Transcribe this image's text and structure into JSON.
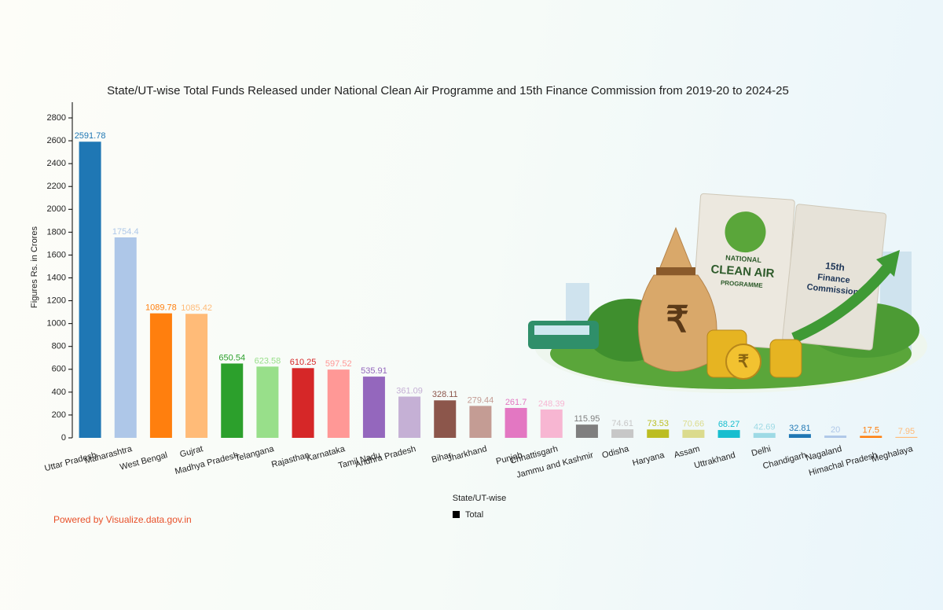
{
  "chart_data": {
    "type": "bar",
    "title": "State/UT-wise Total Funds Released under National Clean Air Programme and 15th Finance Commission from 2019-20 to 2024-25",
    "x_label": "State/UT-wise",
    "y_label": "Figures Rs. in Crores",
    "categories": [
      "Uttar Pradesh",
      "Maharashtra",
      "West Bengal",
      "Gujrat",
      "Madhya Pradesh",
      "Telangana",
      "Rajasthan",
      "Karnataka",
      "Tamil Nadu",
      "Andhra Pradesh",
      "Bihar",
      "Jharkhand",
      "Punjab",
      "Chhattisgarh",
      "Jammu and Kashmir",
      "Odisha",
      "Haryana",
      "Assam",
      "Uttrakhand",
      "Delhi",
      "Chandigarh",
      "Nagaland",
      "Himachal Pradesh",
      "Meghalaya"
    ],
    "series": [
      {
        "name": "Total",
        "color": "#000000",
        "values": [
          2591.78,
          1754.4,
          1089.78,
          1085.42,
          650.54,
          623.58,
          610.25,
          597.52,
          535.91,
          361.09,
          328.11,
          279.44,
          261.7,
          248.39,
          115.95,
          74.61,
          73.53,
          70.66,
          68.27,
          42.69,
          32.81,
          20,
          17.5,
          7.95
        ]
      }
    ],
    "bar_colors": [
      "#1f77b4",
      "#aec7e8",
      "#ff7f0e",
      "#ffbb78",
      "#2ca02c",
      "#98df8a",
      "#d62728",
      "#ff9896",
      "#9467bd",
      "#c5b0d5",
      "#8c564b",
      "#c49c94",
      "#e377c2",
      "#f7b6d2",
      "#7f7f7f",
      "#c7c7c7",
      "#bcbd22",
      "#dbdb8d",
      "#17becf",
      "#9edae5",
      "#1f77b4",
      "#aec7e8",
      "#ff7f0e",
      "#ffbb78"
    ],
    "ylim": [
      0,
      2800
    ],
    "yticks": [
      0,
      200,
      400,
      600,
      800,
      1000,
      1200,
      1400,
      1600,
      1800,
      2000,
      2200,
      2400,
      2600,
      2800
    ],
    "grid": false,
    "credit": "Powered by Visualize.data.gov.in"
  },
  "illustration": {
    "book1_lines": [
      "NATIONAL",
      "CLEAN AIR",
      "PROGRAMME"
    ],
    "book2_lines": [
      "15th",
      "Finance",
      "Commission"
    ],
    "currency_symbol": "₹"
  }
}
